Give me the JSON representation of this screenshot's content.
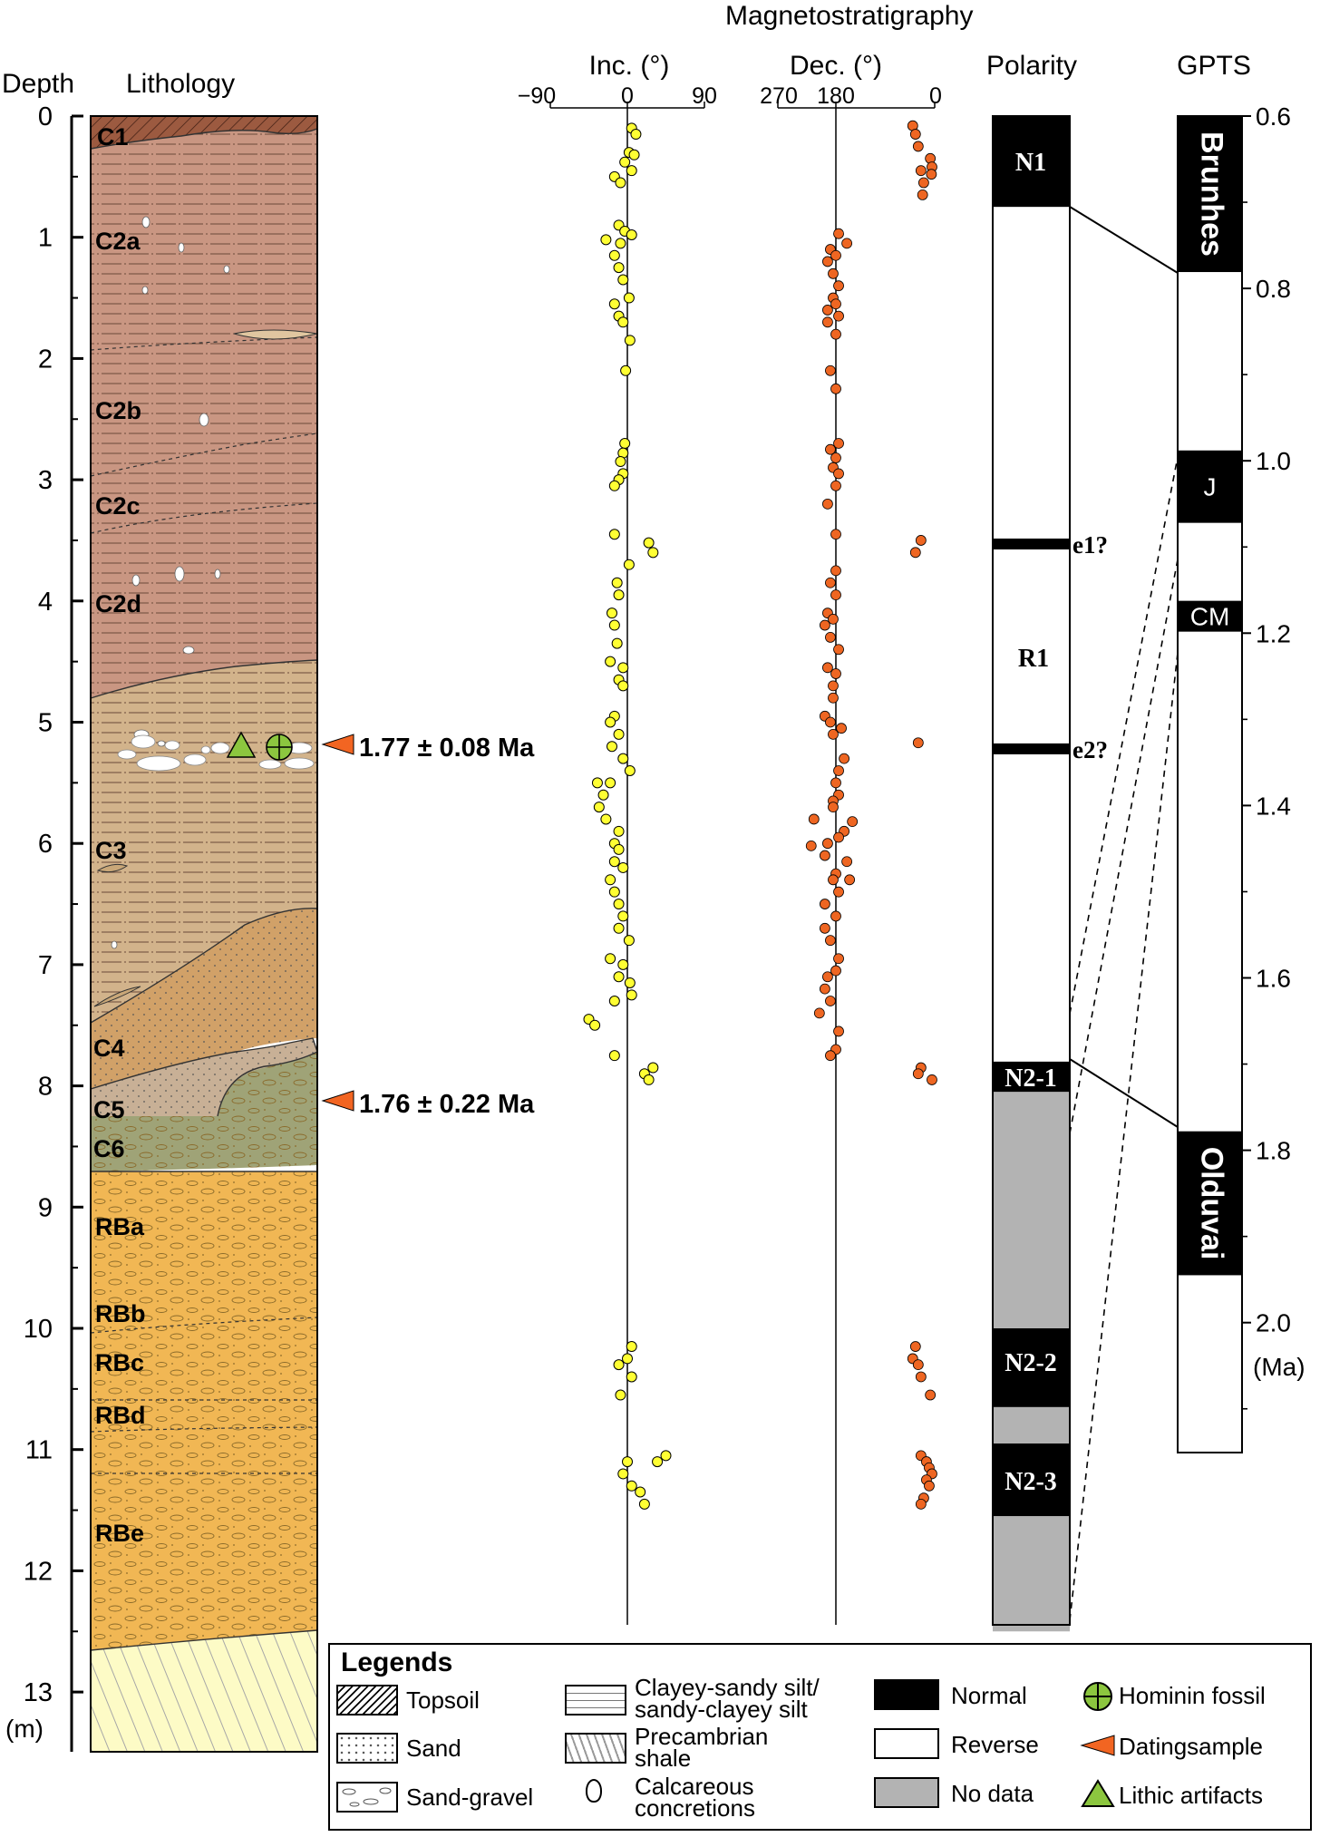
{
  "headers": {
    "depth": "Depth",
    "lithology": "Lithology",
    "magnetostratigraphy": "Magnetostratigraphy",
    "inc": "Inc. (°)",
    "dec": "Dec. (°)",
    "polarity": "Polarity",
    "gpts": "GPTS"
  },
  "depth_axis": {
    "ticks": [
      "0",
      "1",
      "2",
      "3",
      "4",
      "5",
      "6",
      "7",
      "8",
      "9",
      "10",
      "11",
      "12",
      "13"
    ],
    "unit": "(m)"
  },
  "inc_axis": {
    "ticks": [
      "−90",
      "0",
      "90"
    ],
    "range_deg": [
      -90,
      90
    ]
  },
  "dec_axis": {
    "ticks": [
      "270",
      "180",
      "0"
    ],
    "range_deg": [
      270,
      0
    ]
  },
  "units": {
    "C1": "C1",
    "C2a": "C2a",
    "C2b": "C2b",
    "C2c": "C2c",
    "C2d": "C2d",
    "C3": "C3",
    "C4": "C4",
    "C5": "C5",
    "C6": "C6",
    "RBa": "RBa",
    "RBb": "RBb",
    "RBc": "RBc",
    "RBd": "RBd",
    "RBe": "RBe"
  },
  "unit_tops_m": {
    "C1": 0,
    "C2": 0.2,
    "C3": 4.8,
    "C4": 6.6,
    "C5": 7.7,
    "C6": 8.3,
    "RB": 8.7,
    "shale": 12.6,
    "base": 13.5
  },
  "dating": [
    {
      "label": "1.77 ± 0.08 Ma",
      "depth_m": 5.22
    },
    {
      "label": "1.76 ± 0.22 Ma",
      "depth_m": 8.15
    }
  ],
  "finds_depth_m": 5.22,
  "polarity": {
    "zones": [
      {
        "from_m": 0.0,
        "to_m": 0.75,
        "type": "normal"
      },
      {
        "from_m": 0.75,
        "to_m": 7.8,
        "type": "reverse"
      },
      {
        "from_m": 7.8,
        "to_m": 8.05,
        "type": "normal"
      },
      {
        "from_m": 8.05,
        "to_m": 10.0,
        "type": "nodata"
      },
      {
        "from_m": 10.0,
        "to_m": 10.65,
        "type": "normal"
      },
      {
        "from_m": 10.65,
        "to_m": 10.95,
        "type": "nodata"
      },
      {
        "from_m": 10.95,
        "to_m": 11.55,
        "type": "normal"
      },
      {
        "from_m": 11.55,
        "to_m": 12.5,
        "type": "nodata"
      }
    ],
    "excursions": [
      {
        "depth_m": 3.53,
        "label": "e1?"
      },
      {
        "depth_m": 5.22,
        "label": "e2?"
      }
    ],
    "labels": {
      "N1": "N1",
      "R1": "R1",
      "N2_1": "N2-1",
      "N2_2": "N2-2",
      "N2_3": "N2-3"
    }
  },
  "gpts": {
    "ticks": [
      "0.6",
      "0.8",
      "1.0",
      "1.2",
      "1.4",
      "1.6",
      "1.8",
      "2.0"
    ],
    "unit": "(Ma)",
    "range_ma": [
      0.6,
      2.15
    ],
    "chrons": [
      {
        "name": "Brunhes",
        "from_ma": 0.6,
        "to_ma": 0.781
      },
      {
        "name": "J",
        "from_ma": 0.988,
        "to_ma": 1.072
      },
      {
        "name": "CM",
        "from_ma": 1.173,
        "to_ma": 1.185
      },
      {
        "name": "Olduvai",
        "from_ma": 1.778,
        "to_ma": 1.945
      }
    ]
  },
  "chart_data": {
    "type": "scatter",
    "title": "Magnetostratigraphy",
    "series": [
      {
        "name": "Inc. (°)",
        "color": "#ffff33",
        "points": [
          [
            5,
            0.1
          ],
          [
            10,
            0.15
          ],
          [
            2,
            0.3
          ],
          [
            8,
            0.32
          ],
          [
            -3,
            0.38
          ],
          [
            5,
            0.45
          ],
          [
            -15,
            0.5
          ],
          [
            -8,
            0.55
          ],
          [
            -10,
            0.9
          ],
          [
            -3,
            0.95
          ],
          [
            5,
            0.98
          ],
          [
            -25,
            1.02
          ],
          [
            -8,
            1.05
          ],
          [
            -15,
            1.15
          ],
          [
            -10,
            1.25
          ],
          [
            -5,
            1.35
          ],
          [
            2,
            1.5
          ],
          [
            -15,
            1.55
          ],
          [
            -10,
            1.65
          ],
          [
            -5,
            1.7
          ],
          [
            3,
            1.85
          ],
          [
            -2,
            2.1
          ],
          [
            -3,
            2.7
          ],
          [
            -5,
            2.78
          ],
          [
            -8,
            2.85
          ],
          [
            -5,
            2.95
          ],
          [
            -10,
            3.0
          ],
          [
            -15,
            3.05
          ],
          [
            -15,
            3.45
          ],
          [
            25,
            3.52
          ],
          [
            30,
            3.6
          ],
          [
            2,
            3.7
          ],
          [
            -12,
            3.85
          ],
          [
            -10,
            3.95
          ],
          [
            -18,
            4.1
          ],
          [
            -15,
            4.2
          ],
          [
            -12,
            4.35
          ],
          [
            -20,
            4.5
          ],
          [
            -5,
            4.55
          ],
          [
            -10,
            4.65
          ],
          [
            -5,
            4.7
          ],
          [
            -15,
            4.95
          ],
          [
            -20,
            5.0
          ],
          [
            -10,
            5.1
          ],
          [
            -18,
            5.2
          ],
          [
            -5,
            5.3
          ],
          [
            3,
            5.4
          ],
          [
            -20,
            5.5
          ],
          [
            -35,
            5.5
          ],
          [
            -28,
            5.6
          ],
          [
            -33,
            5.7
          ],
          [
            -25,
            5.8
          ],
          [
            -10,
            5.9
          ],
          [
            -15,
            6.0
          ],
          [
            -10,
            6.05
          ],
          [
            -15,
            6.15
          ],
          [
            -5,
            6.2
          ],
          [
            -20,
            6.3
          ],
          [
            -15,
            6.4
          ],
          [
            -10,
            6.5
          ],
          [
            -5,
            6.6
          ],
          [
            -10,
            6.7
          ],
          [
            2,
            6.8
          ],
          [
            -20,
            6.95
          ],
          [
            -5,
            7.0
          ],
          [
            -10,
            7.1
          ],
          [
            3,
            7.15
          ],
          [
            5,
            7.25
          ],
          [
            -15,
            7.3
          ],
          [
            -45,
            7.45
          ],
          [
            -38,
            7.5
          ],
          [
            -15,
            7.75
          ],
          [
            20,
            7.9
          ],
          [
            30,
            7.85
          ],
          [
            25,
            7.95
          ],
          [
            5,
            10.15
          ],
          [
            0,
            10.25
          ],
          [
            -10,
            10.3
          ],
          [
            5,
            10.4
          ],
          [
            -8,
            10.55
          ],
          [
            45,
            11.05
          ],
          [
            35,
            11.1
          ],
          [
            0,
            11.1
          ],
          [
            -5,
            11.2
          ],
          [
            5,
            11.3
          ],
          [
            15,
            11.35
          ],
          [
            20,
            11.45
          ]
        ]
      },
      {
        "name": "Dec. (°)",
        "color": "#ee6622",
        "points": [
          [
            40,
            0.08
          ],
          [
            35,
            0.15
          ],
          [
            30,
            0.25
          ],
          [
            8,
            0.35
          ],
          [
            5,
            0.42
          ],
          [
            6,
            0.48
          ],
          [
            25,
            0.45
          ],
          [
            20,
            0.55
          ],
          [
            22,
            0.65
          ],
          [
            175,
            0.97
          ],
          [
            160,
            1.05
          ],
          [
            190,
            1.1
          ],
          [
            180,
            1.15
          ],
          [
            195,
            1.2
          ],
          [
            185,
            1.3
          ],
          [
            175,
            1.4
          ],
          [
            185,
            1.5
          ],
          [
            180,
            1.55
          ],
          [
            195,
            1.6
          ],
          [
            175,
            1.65
          ],
          [
            195,
            1.7
          ],
          [
            180,
            1.8
          ],
          [
            190,
            2.1
          ],
          [
            180,
            2.25
          ],
          [
            175,
            2.7
          ],
          [
            190,
            2.75
          ],
          [
            180,
            2.82
          ],
          [
            185,
            2.9
          ],
          [
            175,
            2.95
          ],
          [
            180,
            3.05
          ],
          [
            195,
            3.2
          ],
          [
            180,
            3.45
          ],
          [
            25,
            3.5
          ],
          [
            35,
            3.6
          ],
          [
            180,
            3.75
          ],
          [
            190,
            3.85
          ],
          [
            180,
            3.95
          ],
          [
            195,
            4.1
          ],
          [
            185,
            4.15
          ],
          [
            200,
            4.2
          ],
          [
            190,
            4.3
          ],
          [
            175,
            4.4
          ],
          [
            195,
            4.55
          ],
          [
            180,
            4.6
          ],
          [
            185,
            4.7
          ],
          [
            185,
            4.8
          ],
          [
            200,
            4.95
          ],
          [
            190,
            5.0
          ],
          [
            170,
            5.05
          ],
          [
            185,
            5.1
          ],
          [
            30,
            5.17
          ],
          [
            165,
            5.3
          ],
          [
            175,
            5.4
          ],
          [
            180,
            5.5
          ],
          [
            175,
            5.6
          ],
          [
            185,
            5.65
          ],
          [
            185,
            5.7
          ],
          [
            220,
            5.8
          ],
          [
            150,
            5.82
          ],
          [
            165,
            5.9
          ],
          [
            175,
            5.95
          ],
          [
            195,
            6.0
          ],
          [
            225,
            6.02
          ],
          [
            200,
            6.1
          ],
          [
            160,
            6.15
          ],
          [
            180,
            6.25
          ],
          [
            185,
            6.3
          ],
          [
            155,
            6.3
          ],
          [
            175,
            6.4
          ],
          [
            200,
            6.5
          ],
          [
            180,
            6.6
          ],
          [
            200,
            6.7
          ],
          [
            190,
            6.8
          ],
          [
            175,
            6.95
          ],
          [
            180,
            7.05
          ],
          [
            195,
            7.1
          ],
          [
            200,
            7.2
          ],
          [
            190,
            7.3
          ],
          [
            210,
            7.4
          ],
          [
            175,
            7.55
          ],
          [
            180,
            7.7
          ],
          [
            190,
            7.75
          ],
          [
            25,
            7.85
          ],
          [
            30,
            7.9
          ],
          [
            5,
            7.95
          ],
          [
            35,
            10.15
          ],
          [
            40,
            10.25
          ],
          [
            30,
            10.3
          ],
          [
            25,
            10.4
          ],
          [
            8,
            10.55
          ],
          [
            25,
            11.05
          ],
          [
            15,
            11.1
          ],
          [
            10,
            11.15
          ],
          [
            5,
            11.2
          ],
          [
            15,
            11.25
          ],
          [
            10,
            11.3
          ],
          [
            20,
            11.4
          ],
          [
            25,
            11.45
          ]
        ]
      }
    ],
    "xlabel": "Inc. (°) / Dec. (°)",
    "ylabel": "Depth (m)",
    "ylim": [
      0,
      13.5
    ]
  },
  "legend": {
    "title": "Legends",
    "items": {
      "topsoil": "Topsoil",
      "sand": "Sand",
      "sandgravel": "Sand-gravel",
      "silt1": "Clayey-sandy silt/",
      "silt2": "sandy-clayey silt",
      "shale1": "Precambrian",
      "shale2": "shale",
      "calc1": "Calcareous",
      "calc2": "concretions",
      "normal": "Normal",
      "reverse": "Reverse",
      "nodata": "No data",
      "fossil": "Hominin fossil",
      "dating": "Datingsample",
      "lithic": "Lithic artifacts"
    }
  },
  "colors": {
    "c1": "#9c5a40",
    "c2": "#c99682",
    "c3": "#d2b38b",
    "c4": "#d1a168",
    "c5": "#c8b096",
    "c6": "#9fa377",
    "rb": "#f1b754",
    "shale": "#fdfbc6",
    "inc_dots": "#ffff33",
    "dec_dots": "#ee6622",
    "dating": "#f26522",
    "green": "#8cc63f",
    "nodata": "#b3b3b3"
  }
}
